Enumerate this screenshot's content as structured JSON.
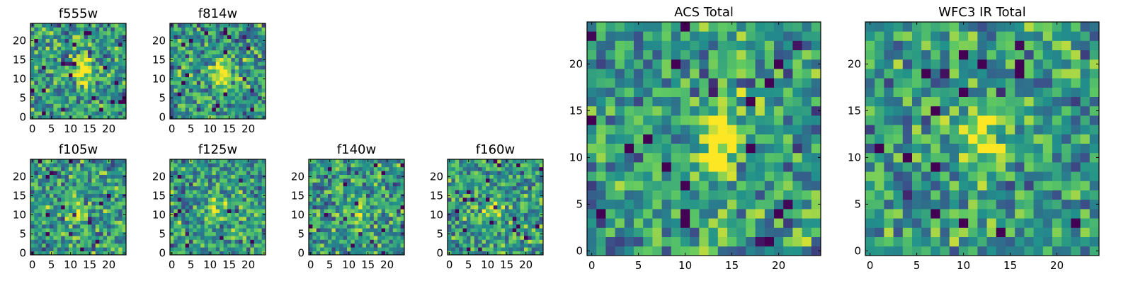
{
  "colors": {
    "background": "#ffffff",
    "axes": "#000000",
    "colormap": [
      "#440154",
      "#3b528b",
      "#21918c",
      "#5ec962",
      "#fde725"
    ]
  },
  "chart_data": [
    {
      "type": "heatmap",
      "title": "f555w",
      "grid_size": 25,
      "xlim": [
        -0.5,
        24.5
      ],
      "ylim": [
        -0.5,
        24.5
      ],
      "xticks": [
        "0",
        "5",
        "10",
        "15",
        "20"
      ],
      "yticks": [
        "0",
        "5",
        "10",
        "15",
        "20"
      ],
      "colormap": "viridis",
      "grid": false,
      "source_center": [
        13,
        12
      ],
      "source_strength": 0.55,
      "noise_seed": 11
    },
    {
      "type": "heatmap",
      "title": "f814w",
      "grid_size": 25,
      "xlim": [
        -0.5,
        24.5
      ],
      "ylim": [
        -0.5,
        24.5
      ],
      "xticks": [
        "0",
        "5",
        "10",
        "15",
        "20"
      ],
      "yticks": [
        "0",
        "5",
        "10",
        "15",
        "20"
      ],
      "colormap": "viridis",
      "grid": false,
      "source_center": [
        13,
        11
      ],
      "source_strength": 0.55,
      "noise_seed": 23
    },
    {
      "type": "heatmap",
      "title": "f105w",
      "grid_size": 25,
      "xlim": [
        -0.5,
        24.5
      ],
      "ylim": [
        -0.5,
        24.5
      ],
      "xticks": [
        "0",
        "5",
        "10",
        "15",
        "20"
      ],
      "yticks": [
        "0",
        "5",
        "10",
        "15",
        "20"
      ],
      "colormap": "viridis",
      "grid": false,
      "source_center": [
        12,
        11
      ],
      "source_strength": 0.35,
      "noise_seed": 37
    },
    {
      "type": "heatmap",
      "title": "f125w",
      "grid_size": 25,
      "xlim": [
        -0.5,
        24.5
      ],
      "ylim": [
        -0.5,
        24.5
      ],
      "xticks": [
        "0",
        "5",
        "10",
        "15",
        "20"
      ],
      "yticks": [
        "0",
        "5",
        "10",
        "15",
        "20"
      ],
      "colormap": "viridis",
      "grid": false,
      "source_center": [
        12,
        12
      ],
      "source_strength": 0.3,
      "noise_seed": 41
    },
    {
      "type": "heatmap",
      "title": "f140w",
      "grid_size": 25,
      "xlim": [
        -0.5,
        24.5
      ],
      "ylim": [
        -0.5,
        24.5
      ],
      "xticks": [
        "0",
        "5",
        "10",
        "15",
        "20"
      ],
      "yticks": [
        "0",
        "5",
        "10",
        "15",
        "20"
      ],
      "colormap": "viridis",
      "grid": false,
      "source_center": [
        12,
        10
      ],
      "source_strength": 0.3,
      "noise_seed": 53
    },
    {
      "type": "heatmap",
      "title": "f160w",
      "grid_size": 25,
      "xlim": [
        -0.5,
        24.5
      ],
      "ylim": [
        -0.5,
        24.5
      ],
      "xticks": [
        "0",
        "5",
        "10",
        "15",
        "20"
      ],
      "yticks": [
        "0",
        "5",
        "10",
        "15",
        "20"
      ],
      "colormap": "viridis",
      "grid": false,
      "source_center": [
        11,
        11
      ],
      "source_strength": 0.3,
      "noise_seed": 67
    },
    {
      "type": "heatmap",
      "title": "ACS Total",
      "grid_size": 25,
      "xlim": [
        -0.5,
        24.5
      ],
      "ylim": [
        -0.5,
        24.5
      ],
      "xticks": [
        "0",
        "5",
        "10",
        "15",
        "20"
      ],
      "yticks": [
        "0",
        "5",
        "10",
        "15",
        "20"
      ],
      "colormap": "viridis",
      "grid": false,
      "source_center": [
        14,
        12
      ],
      "source_strength": 0.6,
      "noise_seed": 79
    },
    {
      "type": "heatmap",
      "title": "WFC3 IR Total",
      "grid_size": 25,
      "xlim": [
        -0.5,
        24.5
      ],
      "ylim": [
        -0.5,
        24.5
      ],
      "xticks": [
        "0",
        "5",
        "10",
        "15",
        "20"
      ],
      "yticks": [
        "0",
        "5",
        "10",
        "15",
        "20"
      ],
      "colormap": "viridis",
      "grid": false,
      "source_center": [
        12,
        12
      ],
      "source_strength": 0.45,
      "noise_seed": 97
    }
  ]
}
